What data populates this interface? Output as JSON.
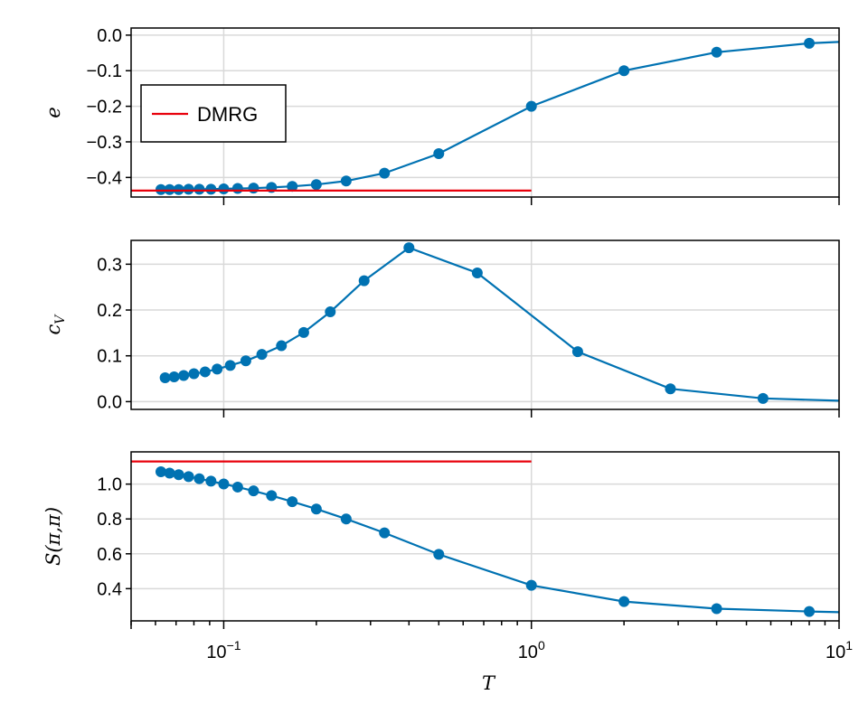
{
  "chart_data": [
    {
      "type": "line",
      "ylabel": "e",
      "xscale": "log",
      "xlim": [
        0.05,
        10
      ],
      "ylim": [
        -0.455,
        0.02
      ],
      "yticks": [
        0.0,
        -0.1,
        -0.2,
        -0.3,
        -0.4
      ],
      "ytick_labels": [
        "0.0",
        "−0.1",
        "−0.2",
        "−0.3",
        "−0.4"
      ],
      "grid": true,
      "legend": {
        "placement": "left",
        "entries": [
          "DMRG"
        ]
      },
      "series": [
        {
          "color": "#0072b2",
          "marker": "circle",
          "x": [
            0.0625,
            0.0667,
            0.0714,
            0.0769,
            0.0833,
            0.0909,
            0.1,
            0.111,
            0.125,
            0.143,
            0.167,
            0.2,
            0.25,
            0.333,
            0.5,
            1.0,
            2.0,
            4.0,
            8.0,
            10.0
          ],
          "y": [
            -0.434,
            -0.434,
            -0.434,
            -0.433,
            -0.433,
            -0.433,
            -0.432,
            -0.431,
            -0.43,
            -0.428,
            -0.425,
            -0.42,
            -0.41,
            -0.388,
            -0.333,
            -0.2,
            -0.1,
            -0.048,
            -0.023,
            -0.019
          ],
          "markers_on_last_point": false
        },
        {
          "name": "DMRG",
          "color": "#e8000b",
          "marker": "none",
          "x": [
            0.05,
            1.0
          ],
          "y": [
            -0.437,
            -0.437
          ]
        }
      ]
    },
    {
      "type": "line",
      "ylabel": "c_V",
      "xscale": "log",
      "xlim": [
        0.05,
        10
      ],
      "ylim": [
        -0.017,
        0.352
      ],
      "yticks": [
        0.0,
        0.1,
        0.2,
        0.3
      ],
      "ytick_labels": [
        "0.0",
        "0.1",
        "0.2",
        "0.3"
      ],
      "grid": true,
      "series": [
        {
          "color": "#0072b2",
          "marker": "circle",
          "x": [
            0.0645,
            0.069,
            0.0741,
            0.08,
            0.087,
            0.0952,
            0.105,
            0.118,
            0.133,
            0.154,
            0.182,
            0.222,
            0.286,
            0.4,
            0.667,
            1.414,
            2.83,
            5.66,
            10.0
          ],
          "y": [
            0.052,
            0.054,
            0.057,
            0.061,
            0.065,
            0.071,
            0.079,
            0.089,
            0.103,
            0.122,
            0.151,
            0.196,
            0.264,
            0.336,
            0.281,
            0.109,
            0.028,
            0.007,
            0.002
          ],
          "markers_on_last_point": false
        }
      ]
    },
    {
      "type": "line",
      "ylabel": "S(π,π)",
      "xlabel": "T",
      "xscale": "log",
      "xlim": [
        0.05,
        10
      ],
      "ylim": [
        0.215,
        1.185
      ],
      "yticks": [
        0.4,
        0.6,
        0.8,
        1.0
      ],
      "ytick_labels": [
        "0.4",
        "0.6",
        "0.8",
        "1.0"
      ],
      "xtick_labels": [
        {
          "base": "10",
          "exp": "−1"
        },
        {
          "base": "10",
          "exp": "0"
        },
        {
          "base": "10",
          "exp": "1"
        }
      ],
      "grid": true,
      "series": [
        {
          "color": "#0072b2",
          "marker": "circle",
          "x": [
            0.0625,
            0.0667,
            0.0714,
            0.0769,
            0.0833,
            0.0909,
            0.1,
            0.111,
            0.125,
            0.143,
            0.167,
            0.2,
            0.25,
            0.333,
            0.5,
            1.0,
            2.0,
            4.0,
            8.0,
            10.0
          ],
          "y": [
            1.071,
            1.063,
            1.054,
            1.043,
            1.031,
            1.017,
            1.001,
            0.983,
            0.961,
            0.934,
            0.899,
            0.857,
            0.8,
            0.72,
            0.597,
            0.419,
            0.326,
            0.285,
            0.269,
            0.265
          ],
          "markers_on_last_point": false
        },
        {
          "color": "#e8000b",
          "marker": "none",
          "x": [
            0.05,
            1.0
          ],
          "y": [
            1.13,
            1.13
          ]
        }
      ]
    }
  ]
}
